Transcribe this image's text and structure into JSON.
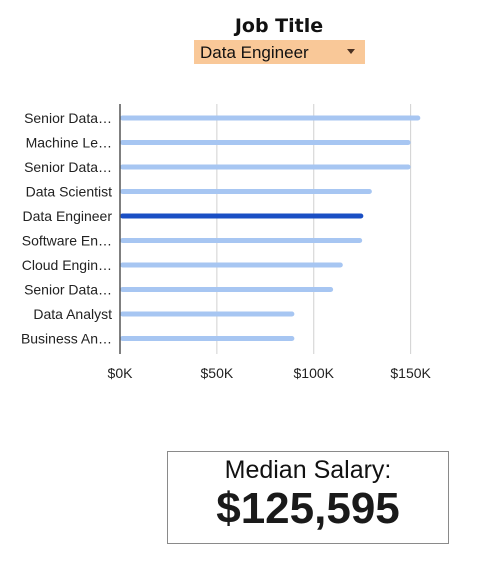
{
  "filter": {
    "label": "Job Title",
    "selected": "Data Engineer",
    "arrow_icon": "dropdown-arrow-icon",
    "background_color": "#f9c898"
  },
  "chart_data": {
    "type": "bar",
    "orientation": "horizontal",
    "categories": [
      "Senior Data…",
      "Machine Le…",
      "Senior Data…",
      "Data Scientist",
      "Data Engineer",
      "Software En…",
      "Cloud Engin…",
      "Senior Data…",
      "Data Analyst",
      "Business An…"
    ],
    "values": [
      155000,
      150000,
      150000,
      130000,
      125595,
      125000,
      115000,
      110000,
      90000,
      90000
    ],
    "highlighted_category": "Data Engineer",
    "xlim": [
      0,
      160000
    ],
    "x_ticks": [
      0,
      50000,
      100000,
      150000
    ],
    "x_tick_labels": [
      "$0K",
      "$50K",
      "$100K",
      "$150K"
    ],
    "grid": true,
    "bar_color": "#a7c6f2",
    "highlight_color": "#1a4fc4"
  },
  "median": {
    "label": "Median Salary:",
    "value": "$125,595"
  }
}
